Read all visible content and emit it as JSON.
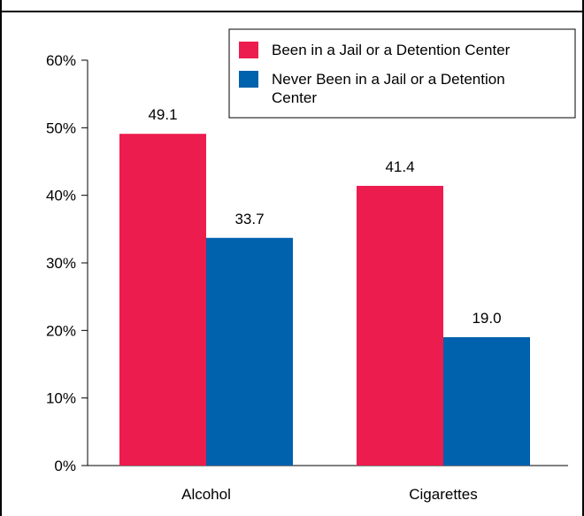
{
  "chart_data": {
    "type": "bar",
    "categories": [
      "Alcohol",
      "Cigarettes"
    ],
    "series": [
      {
        "name": "Been in a Jail or a Detention Center",
        "values": [
          49.1,
          41.4
        ],
        "labels": [
          "49.1",
          "41.4"
        ],
        "color": "#ed1c4e"
      },
      {
        "name": "Never Been in a Jail or a Detention Center",
        "values": [
          33.7,
          19.0
        ],
        "labels": [
          "33.7",
          "19.0"
        ],
        "color": "#0061ad"
      }
    ],
    "ylim": [
      0,
      60
    ],
    "yticks": [
      0,
      10,
      20,
      30,
      40,
      50,
      60
    ],
    "ytick_labels": [
      "0%",
      "10%",
      "20%",
      "30%",
      "40%",
      "50%",
      "60%"
    ],
    "legend_position": "top-right",
    "grid": false
  }
}
